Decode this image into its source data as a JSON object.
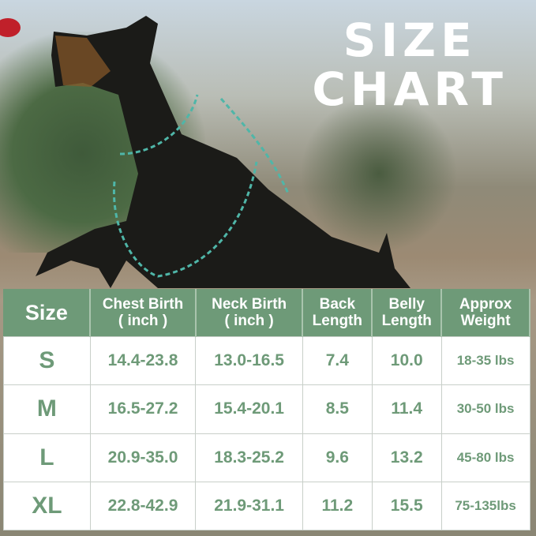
{
  "title": {
    "line1": "SIZE",
    "line2": "CHART"
  },
  "colors": {
    "accent": "#6e9a78",
    "harness_outline": "#4fb6a8"
  },
  "table": {
    "headers": [
      "Size",
      "Chest Birth\n( inch )",
      "Neck Birth\n( inch )",
      "Back\nLength",
      "Belly\nLength",
      "Approx\nWeight"
    ],
    "rows": [
      [
        "S",
        "14.4-23.8",
        "13.0-16.5",
        "7.4",
        "10.0",
        "18-35 lbs"
      ],
      [
        "M",
        "16.5-27.2",
        "15.4-20.1",
        "8.5",
        "11.4",
        "30-50 lbs"
      ],
      [
        "L",
        "20.9-35.0",
        "18.3-25.2",
        "9.6",
        "13.2",
        "45-80 lbs"
      ],
      [
        "XL",
        "22.8-42.9",
        "21.9-31.1",
        "11.2",
        "15.5",
        "75-135lbs"
      ]
    ]
  }
}
